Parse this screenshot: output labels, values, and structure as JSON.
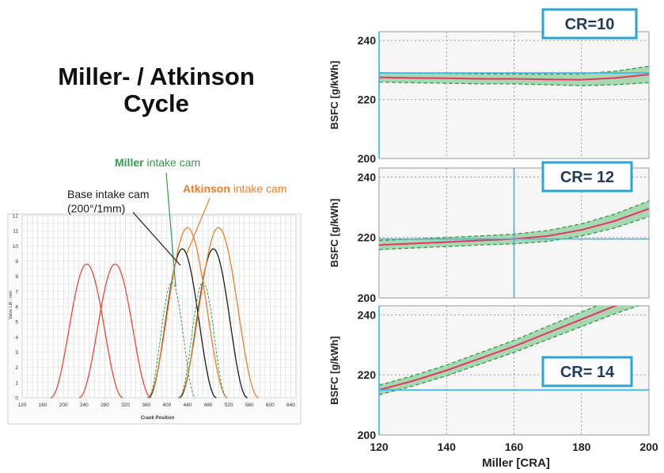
{
  "title": {
    "line1": "Miller- / Atkinson",
    "line2": "Cycle"
  },
  "callouts": {
    "miller_bold": "Miller",
    "miller_rest": " intake cam",
    "base_line1": "Base intake cam",
    "base_line2": "(200°/1mm)",
    "atkinson_bold": "Atkinson",
    "atkinson_rest": " intake cam"
  },
  "colors": {
    "exhaust": "#e8473a",
    "base": "#1a1a1a",
    "atkinson": "#f07d28",
    "miller": "#2e9e4a",
    "bsfc_line": "#e8336a",
    "band_fill": "#a7d8b0",
    "band_edge": "#2e9e4a",
    "crosshair": "#3cb4e6",
    "label_border": "#2aa6d6"
  },
  "chart_data": [
    {
      "type": "line",
      "xlabel": "Crank Position",
      "ylabel": "Valve Lift - mm",
      "xlim": [
        120,
        650
      ],
      "ylim": [
        0,
        12
      ],
      "xticks": [
        120,
        160,
        200,
        240,
        280,
        320,
        360,
        400,
        440,
        480,
        520,
        560,
        600,
        640
      ],
      "yticks": [
        0,
        1,
        2,
        3,
        4,
        5,
        6,
        7,
        8,
        9,
        10,
        11,
        12
      ],
      "grid": true,
      "series": [
        {
          "group": "exhaust",
          "style": "solid",
          "center": 245,
          "peak": 8.8,
          "halfwidth": 70
        },
        {
          "group": "exhaust",
          "style": "solid",
          "center": 300,
          "peak": 8.8,
          "halfwidth": 70
        },
        {
          "group": "base",
          "style": "solid",
          "center": 430,
          "peak": 9.8,
          "halfwidth": 66
        },
        {
          "group": "base",
          "style": "solid",
          "center": 490,
          "peak": 9.8,
          "halfwidth": 66
        },
        {
          "group": "atkinson",
          "style": "solid",
          "center": 440,
          "peak": 11.2,
          "halfwidth": 78
        },
        {
          "group": "atkinson",
          "style": "solid",
          "center": 500,
          "peak": 11.2,
          "halfwidth": 78
        },
        {
          "group": "miller",
          "style": "dashed",
          "center": 410,
          "peak": 7.6,
          "halfwidth": 46
        },
        {
          "group": "miller",
          "style": "dashed",
          "center": 470,
          "peak": 7.6,
          "halfwidth": 46
        }
      ]
    },
    {
      "type": "line",
      "panel_label": "CR=10",
      "ylabel": "BSFC  [g/kWh]",
      "xlim": [
        120,
        200
      ],
      "ylim": [
        200,
        243
      ],
      "yticks": [
        200,
        220,
        240
      ],
      "xticks": [
        120,
        140,
        160,
        180,
        200
      ],
      "x": [
        120,
        130,
        140,
        150,
        160,
        170,
        180,
        190,
        200
      ],
      "values": [
        227.5,
        227.3,
        227.2,
        227,
        227,
        226.8,
        226.7,
        227.3,
        228.5
      ],
      "band": [
        1.6,
        1.6,
        1.7,
        1.7,
        1.7,
        1.8,
        2,
        2.3,
        2.8
      ],
      "crosshair": {
        "x": 120,
        "y": 229
      }
    },
    {
      "type": "line",
      "panel_label": "CR= 12",
      "ylabel": "BSFC  [g/kWh]",
      "xlim": [
        120,
        200
      ],
      "ylim": [
        200,
        243
      ],
      "yticks": [
        200,
        220,
        240
      ],
      "xticks": [
        120,
        140,
        160,
        180,
        200
      ],
      "x": [
        120,
        130,
        140,
        150,
        160,
        170,
        180,
        190,
        200
      ],
      "values": [
        217.5,
        218,
        218.5,
        219,
        219.5,
        220.5,
        222.5,
        225.5,
        229.5
      ],
      "band": [
        1.5,
        1.5,
        1.5,
        1.5,
        1.6,
        1.8,
        2,
        2.3,
        2.6
      ],
      "crosshair": {
        "x": 160,
        "y": 219.5
      }
    },
    {
      "type": "line",
      "panel_label": "CR= 14",
      "ylabel": "BSFC  [g/kWh]",
      "xlabel": "Miller  [CRA]",
      "xlim": [
        120,
        200
      ],
      "ylim": [
        200,
        243
      ],
      "yticks": [
        200,
        220,
        240
      ],
      "xticks": [
        120,
        140,
        160,
        180,
        200
      ],
      "x": [
        120,
        130,
        140,
        150,
        160,
        170,
        180,
        190,
        200
      ],
      "values": [
        215,
        218,
        221.5,
        225.5,
        229.5,
        234,
        238.5,
        243,
        247
      ],
      "band": [
        1.6,
        1.7,
        1.8,
        1.9,
        2,
        2.2,
        2.4,
        2.6,
        2.8
      ],
      "crosshair": {
        "x": 120,
        "y": 215
      }
    }
  ]
}
